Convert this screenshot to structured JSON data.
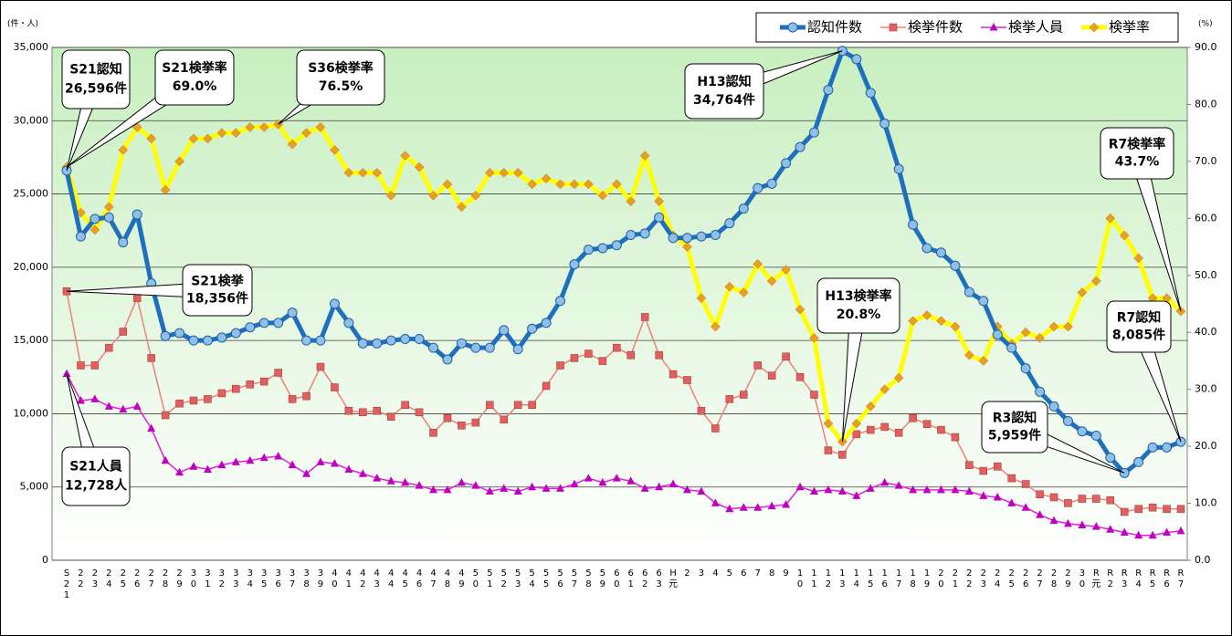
{
  "chart_data": {
    "type": "line",
    "y_unit": "(件・人)",
    "y2_unit": "(%)",
    "categories": [
      "S21",
      "22",
      "23",
      "24",
      "25",
      "26",
      "27",
      "28",
      "29",
      "30",
      "31",
      "32",
      "33",
      "34",
      "35",
      "36",
      "37",
      "38",
      "39",
      "40",
      "41",
      "42",
      "43",
      "44",
      "45",
      "46",
      "47",
      "48",
      "49",
      "50",
      "51",
      "52",
      "53",
      "54",
      "55",
      "56",
      "57",
      "58",
      "59",
      "60",
      "61",
      "62",
      "63",
      "H元",
      "2",
      "3",
      "4",
      "5",
      "6",
      "7",
      "8",
      "9",
      "10",
      "11",
      "12",
      "13",
      "14",
      "15",
      "16",
      "17",
      "18",
      "19",
      "20",
      "21",
      "22",
      "23",
      "24",
      "25",
      "26",
      "27",
      "28",
      "29",
      "30",
      "R元",
      "R2",
      "R3",
      "R4",
      "R5",
      "R6",
      "R7"
    ],
    "series": [
      {
        "name": "認知件数",
        "color": "#1f6fbf",
        "marker": "circle",
        "values": [
          26596,
          22100,
          23300,
          23400,
          21700,
          23600,
          18900,
          15300,
          15500,
          15000,
          15000,
          15200,
          15500,
          15900,
          16200,
          16200,
          16900,
          15000,
          15000,
          17500,
          16200,
          14800,
          14800,
          15000,
          15100,
          15100,
          14500,
          13700,
          14800,
          14500,
          14500,
          15700,
          14400,
          15800,
          16200,
          17700,
          20200,
          21200,
          21300,
          21500,
          22200,
          22300,
          23400,
          22000,
          22000,
          22100,
          22200,
          23000,
          24000,
          25400,
          25700,
          27100,
          28200,
          29200,
          32100,
          34764,
          34200,
          31900,
          29800,
          26700,
          22900,
          21300,
          21000,
          20100,
          18300,
          17700,
          15400,
          14500,
          13100,
          11500,
          10500,
          9500,
          8800,
          8500,
          7000,
          5959,
          6700,
          7700,
          7700,
          8085
        ]
      },
      {
        "name": "検挙件数",
        "color": "#f08078",
        "marker": "square",
        "values": [
          18356,
          13300,
          13300,
          14500,
          15600,
          17900,
          13800,
          9900,
          10700,
          10900,
          11000,
          11400,
          11700,
          12000,
          12200,
          12800,
          11000,
          11200,
          13200,
          11800,
          10200,
          10100,
          10200,
          9800,
          10600,
          10100,
          8700,
          9700,
          9200,
          9400,
          10600,
          9600,
          10600,
          10600,
          11900,
          13300,
          13800,
          14100,
          13600,
          14500,
          14000,
          16600,
          14000,
          12700,
          12300,
          10200,
          9000,
          11000,
          11300,
          13300,
          12600,
          13900,
          12500,
          11300,
          7500,
          7200,
          8600,
          8900,
          9100,
          8700,
          9700,
          9300,
          8900,
          8400,
          6500,
          6100,
          6400,
          5600,
          5200,
          4500,
          4300,
          3900,
          4200,
          4200,
          4100,
          3300,
          3500,
          3600,
          3500,
          3500
        ]
      },
      {
        "name": "検挙人員",
        "color": "#e020e0",
        "marker": "triangle",
        "values": [
          12728,
          10900,
          11000,
          10500,
          10300,
          10500,
          9000,
          6800,
          6000,
          6400,
          6200,
          6500,
          6700,
          6800,
          7000,
          7100,
          6500,
          5900,
          6700,
          6600,
          6200,
          5900,
          5600,
          5400,
          5300,
          5100,
          4800,
          4800,
          5300,
          5100,
          4700,
          4900,
          4700,
          5000,
          4900,
          4900,
          5200,
          5600,
          5300,
          5600,
          5400,
          4900,
          5000,
          5200,
          4800,
          4700,
          3900,
          3500,
          3600,
          3600,
          3700,
          3800,
          5000,
          4700,
          4800,
          4700,
          4400,
          4900,
          5300,
          5100,
          4800,
          4800,
          4800,
          4800,
          4700,
          4400,
          4300,
          3900,
          3600,
          3100,
          2700,
          2500,
          2400,
          2300,
          2100,
          1900,
          1700,
          1700,
          1900,
          2000
        ]
      },
      {
        "name": "検挙率",
        "color": "#ffff00",
        "marker": "diamond",
        "axis": "y2",
        "values": [
          69.0,
          61,
          58,
          62,
          72,
          76,
          74,
          65,
          70,
          74,
          74,
          75,
          75,
          76,
          76,
          76.5,
          73,
          75,
          76,
          72,
          68,
          68,
          68,
          64,
          71,
          69,
          64,
          66,
          62,
          64,
          68,
          68,
          68,
          66,
          67,
          66,
          66,
          66,
          64,
          66,
          63,
          71,
          63,
          57,
          55,
          46,
          41,
          48,
          47,
          52,
          49,
          51,
          44,
          39,
          24,
          20.8,
          24,
          27,
          30,
          32,
          42,
          43,
          42,
          41,
          36,
          35,
          41,
          38,
          40,
          39,
          41,
          41,
          47,
          49,
          60,
          57,
          53,
          46,
          46,
          43.7
        ]
      }
    ],
    "ylim": [
      0,
      35000
    ],
    "yticks": [
      0,
      {
        "value": 5000,
        "label": "5,000"
      },
      {
        "value": 10000,
        "label": "10,000"
      },
      {
        "value": 15000,
        "label": "15,000"
      },
      {
        "value": 20000,
        "label": "20,000"
      },
      {
        "value": 25000,
        "label": "25,000"
      },
      {
        "value": 30000,
        "label": "30,000"
      },
      {
        "value": 35000,
        "label": "35,000"
      }
    ],
    "y2lim": [
      0,
      90
    ],
    "y2ticks": [
      {
        "value": 0,
        "label": "0.0"
      },
      {
        "value": 10,
        "label": "10.0"
      },
      {
        "value": 20,
        "label": "20.0"
      },
      {
        "value": 30,
        "label": "30.0"
      },
      {
        "value": 40,
        "label": "40.0"
      },
      {
        "value": 50,
        "label": "50.0"
      },
      {
        "value": 60,
        "label": "60.0"
      },
      {
        "value": 70,
        "label": "70.0"
      },
      {
        "value": 80,
        "label": "80.0"
      },
      {
        "value": 90,
        "label": "90.0"
      }
    ],
    "grid": true,
    "legend": "top-right",
    "annotations": [
      {
        "lines": [
          "S21認知",
          "26,596件"
        ]
      },
      {
        "lines": [
          "S21検挙率",
          "69.0%"
        ]
      },
      {
        "lines": [
          "S36検挙率",
          "76.5%"
        ]
      },
      {
        "lines": [
          "H13認知",
          "34,764件"
        ]
      },
      {
        "lines": [
          "R7検挙率",
          "43.7%"
        ]
      },
      {
        "lines": [
          "S21検挙",
          "18,356件"
        ]
      },
      {
        "lines": [
          "H13検挙率",
          "20.8%"
        ]
      },
      {
        "lines": [
          "R7認知",
          "8,085件"
        ]
      },
      {
        "lines": [
          "R3認知",
          "5,959件"
        ]
      },
      {
        "lines": [
          "S21人員",
          "12,728人"
        ]
      }
    ]
  }
}
